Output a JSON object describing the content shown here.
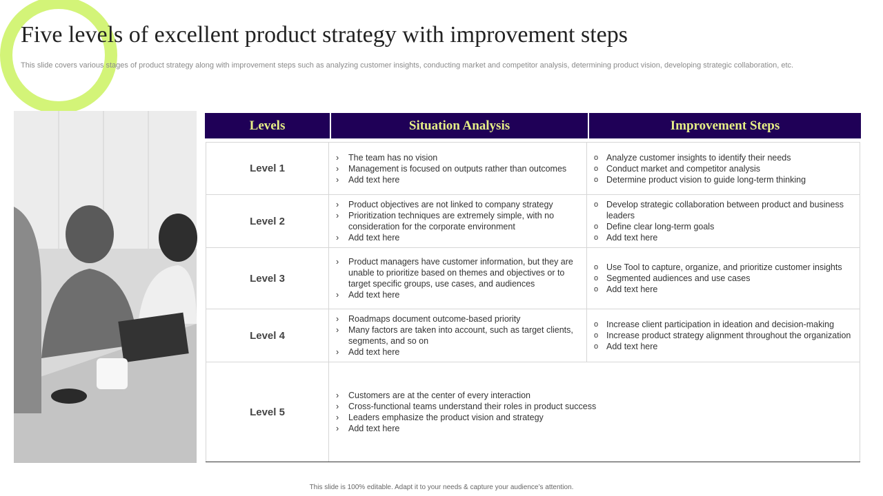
{
  "header": {
    "title": "Five levels of excellent product strategy with improvement steps",
    "subtitle": "This slide covers various stages of product strategy along with improvement steps such as analyzing customer insights, conducting market and competitor analysis, determining product vision, developing strategic collaboration, etc."
  },
  "table": {
    "columns": [
      "Levels",
      "Situation Analysis",
      "Improvement Steps"
    ],
    "rows": [
      {
        "level": "Level 1",
        "situation": [
          "The team has no vision",
          "Management is focused on outputs rather than outcomes",
          "Add text here"
        ],
        "improvement": [
          "Analyze customer insights to identify their needs",
          "Conduct market and competitor analysis",
          "Determine product vision to guide long-term thinking"
        ]
      },
      {
        "level": "Level 2",
        "situation": [
          "Product objectives are not linked to company strategy",
          "Prioritization techniques are extremely simple, with no consideration for the corporate environment",
          "Add text here"
        ],
        "improvement": [
          "Develop strategic collaboration between product and business leaders",
          "Define clear long-term goals",
          "Add text here"
        ]
      },
      {
        "level": "Level 3",
        "situation": [
          "Product managers have customer information, but they are unable to prioritize based on themes and objectives or to target specific groups, use cases, and audiences",
          "Add text here"
        ],
        "improvement": [
          "Use Tool to capture, organize, and prioritize customer insights",
          "Segmented audiences and use cases",
          "Add text here"
        ]
      },
      {
        "level": "Level 4",
        "situation": [
          "Roadmaps document outcome-based priority",
          "Many factors are taken into account, such as target clients, segments, and so on",
          "Add text here"
        ],
        "improvement": [
          "Increase client participation in ideation and decision-making",
          "Increase product strategy alignment throughout the organization",
          "Add text here"
        ]
      },
      {
        "level": "Level 5",
        "situation": [
          "Customers are at the center of every interaction",
          "Cross-functional teams understand their roles in product success",
          "Leaders emphasize the product vision and strategy",
          "Add text here"
        ]
      }
    ]
  },
  "footer": "This slide is 100% editable. Adapt it to your needs & capture your audience’s attention."
}
